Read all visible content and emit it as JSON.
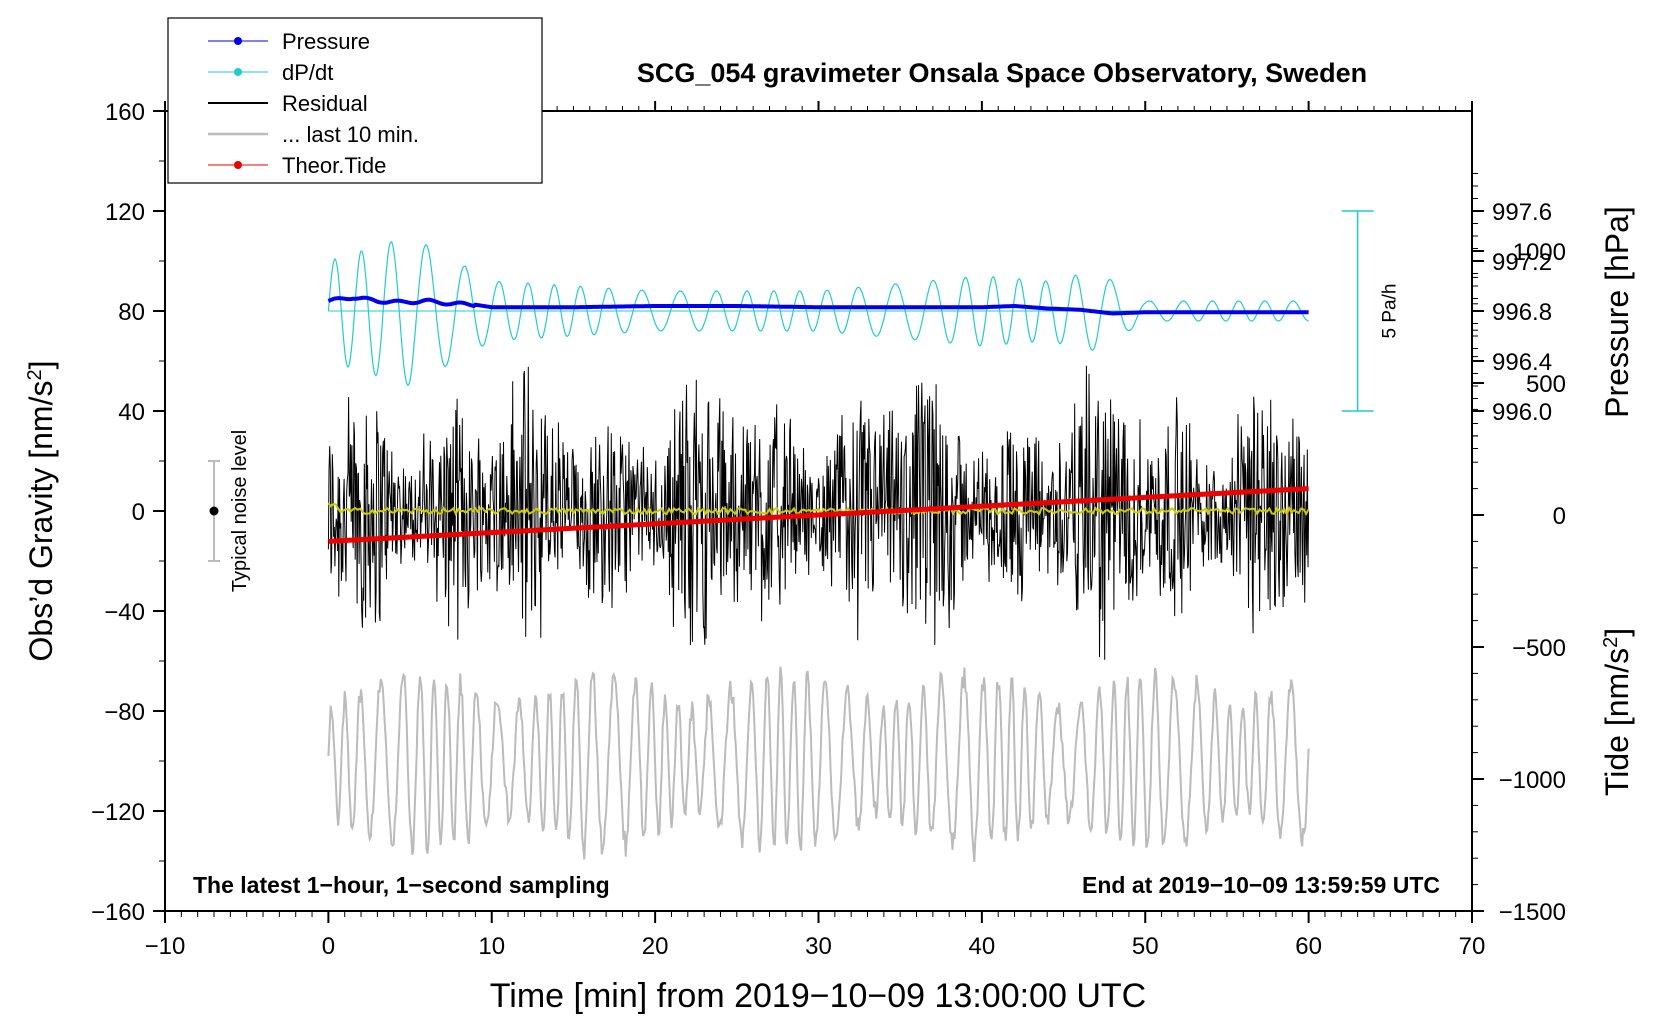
{
  "chart_data": {
    "type": "line",
    "title": "SCG_054 gravimeter Onsala Space Observatory, Sweden",
    "xlabel": "Time [min] from 2019−10−09 13:00:00 UTC",
    "ylabel_left": "Obs’d Gravity [nm/s²]",
    "ylabel_left_parts": {
      "main": "Obs’d Gravity [nm/s",
      "sup": "2",
      "end": "]"
    },
    "ylabel_right_pressure": "Pressure [hPa]",
    "ylabel_right_tide": "Tide [nm/s²]",
    "ylabel_right_tide_parts": {
      "main": "Tide [nm/s",
      "sup": "2",
      "end": "]"
    },
    "xlim": [
      -10,
      70
    ],
    "ylim": [
      -160,
      160
    ],
    "xticks": [
      -10,
      0,
      10,
      20,
      30,
      40,
      50,
      60,
      70
    ],
    "xtick_labels": [
      "−10",
      "0",
      "10",
      "20",
      "30",
      "40",
      "50",
      "60",
      "70"
    ],
    "yticks": [
      -160,
      -120,
      -80,
      -40,
      0,
      40,
      80,
      120,
      160
    ],
    "ytick_labels": [
      "−160",
      "−120",
      "−80",
      "−40",
      "0",
      "40",
      "80",
      "120",
      "160"
    ],
    "pressure_axis": {
      "range": [
        995.6,
        998.0
      ],
      "ticks": [
        996.0,
        996.4,
        996.8,
        997.2,
        997.6
      ],
      "tick_labels": [
        "996.0",
        "996.4",
        "996.8",
        "997.2",
        "997.6"
      ]
    },
    "tide_axis": {
      "range": [
        -1500,
        1000
      ],
      "ticks": [
        -1500,
        -1000,
        -500,
        0,
        500,
        1000
      ],
      "tick_labels": [
        "−1500",
        "−1000",
        "−500",
        "0",
        "500",
        "1000"
      ]
    },
    "legend": [
      {
        "label": "Pressure",
        "color": "#0000ee",
        "marker": true
      },
      {
        "label": "dP/dt",
        "color": "#22cccc",
        "marker": true
      },
      {
        "label": "Residual",
        "color": "#000000",
        "marker": false
      },
      {
        "label": "... last 10 min.",
        "color": "#bbbbbb",
        "marker": false
      },
      {
        "label": "Theor.Tide",
        "color": "#ee0000",
        "marker": true
      }
    ],
    "series": [
      {
        "name": "Pressure",
        "axis": "pressure",
        "color": "#0000ee",
        "x": [
          0,
          1.5,
          3,
          4.5,
          6,
          7.5,
          9,
          10,
          12,
          15,
          20,
          25,
          30,
          35,
          40,
          42,
          44,
          46,
          48,
          50,
          55,
          60
        ],
        "values": [
          996.88,
          996.91,
          996.88,
          996.87,
          996.88,
          996.86,
          996.85,
          996.83,
          996.83,
          996.83,
          996.84,
          996.84,
          996.83,
          996.83,
          996.83,
          996.84,
          996.82,
          996.81,
          996.78,
          996.79,
          996.79,
          996.79
        ]
      },
      {
        "name": "dP/dt",
        "axis": "left",
        "color": "#22cccc",
        "baseline": 80,
        "amplitude_envelope_x": [
          0,
          5,
          10,
          20,
          30,
          40,
          44,
          47,
          50,
          60
        ],
        "amplitude_envelope": [
          20,
          30,
          12,
          8,
          8,
          14,
          12,
          16,
          4,
          4
        ]
      },
      {
        "name": "Residual",
        "axis": "left",
        "color": "#000000",
        "x_range": [
          0,
          60
        ],
        "mean": 0,
        "envelope": [
          -60,
          60
        ]
      },
      {
        "name": "Smoothed residual",
        "axis": "left",
        "color": "#cccc00",
        "x_range": [
          0,
          60
        ],
        "mean": 0
      },
      {
        "name": "... last 10 min.",
        "axis": "left",
        "color": "#bbbbbb",
        "x_range": [
          0,
          60
        ],
        "mean": -100,
        "envelope": [
          -150,
          -60
        ]
      },
      {
        "name": "Theor.Tide",
        "axis": "tide",
        "color": "#ee0000",
        "x": [
          0,
          60
        ],
        "values": [
          -100,
          100
        ]
      }
    ],
    "scale_bar": {
      "label": "5 Pa/h",
      "center": 80,
      "half_height": 40,
      "x": 63
    },
    "noise_bar": {
      "label": "Typical noise level",
      "center": 0,
      "half_height": 20,
      "x": -7
    },
    "annotation_left": "The latest 1−hour, 1−second sampling",
    "annotation_right": "End at 2019−10−09 13:59:59 UTC"
  }
}
